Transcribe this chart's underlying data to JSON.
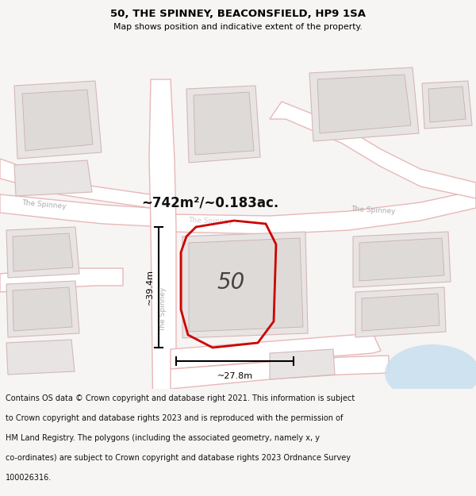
{
  "title": "50, THE SPINNEY, BEACONSFIELD, HP9 1SA",
  "subtitle": "Map shows position and indicative extent of the property.",
  "area_text": "~742m²/~0.183ac.",
  "number_label": "50",
  "dim_vertical": "~39.4m",
  "dim_horizontal": "~27.8m",
  "footer_lines": [
    "Contains OS data © Crown copyright and database right 2021. This information is subject",
    "to Crown copyright and database rights 2023 and is reproduced with the permission of",
    "HM Land Registry. The polygons (including the associated geometry, namely x, y",
    "co-ordinates) are subject to Crown copyright and database rights 2023 Ordnance Survey",
    "100026316."
  ],
  "map_bg": "#f7f4f4",
  "road_fill": "#ffffff",
  "road_edge": "#e8b8b8",
  "road_edge2": "#ccaaaa",
  "building_fill": "#e8e4e4",
  "building_edge": "#d4b8b8",
  "building_inner_fill": "#dedad8",
  "building_inner_edge": "#c8b0b0",
  "highlight_color": "#cc0000",
  "water_color": "#c8dff0",
  "road_label_color": "#aaaaaa",
  "title_color": "#000000",
  "footer_bg": "#ffffff",
  "footer_color": "#111111"
}
